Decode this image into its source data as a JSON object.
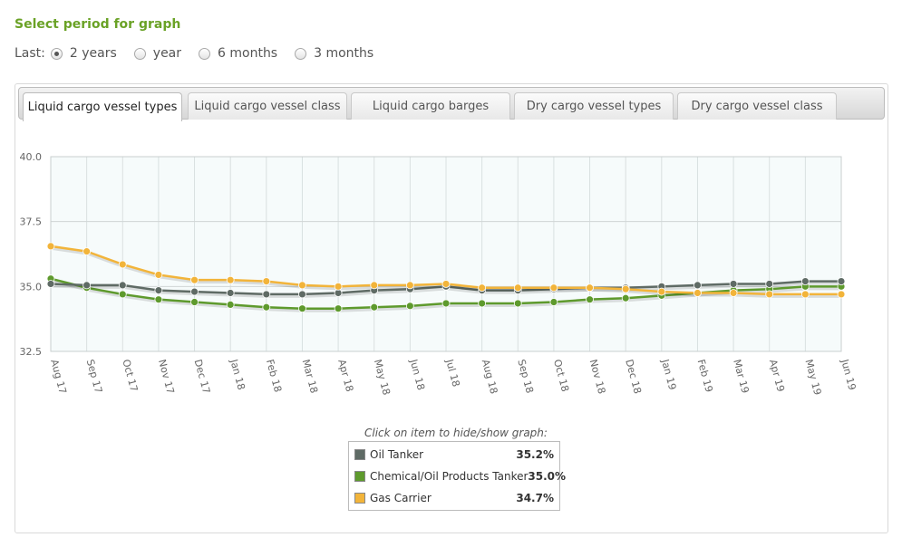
{
  "page": {
    "heading": "Select period for graph",
    "period_label": "Last:",
    "period_options": [
      {
        "label": "2 years",
        "checked": true
      },
      {
        "label": "year",
        "checked": false
      },
      {
        "label": "6 months",
        "checked": false
      },
      {
        "label": "3 months",
        "checked": false
      }
    ]
  },
  "tabs": [
    {
      "label": "Liquid cargo vessel types",
      "active": true
    },
    {
      "label": "Liquid cargo vessel class",
      "active": false
    },
    {
      "label": "Liquid cargo barges",
      "active": false
    },
    {
      "label": "Dry cargo vessel types",
      "active": false
    },
    {
      "label": "Dry cargo vessel class",
      "active": false
    }
  ],
  "legend": {
    "caption": "Click on item to hide/show graph:",
    "items": [
      {
        "name": "Oil Tanker",
        "value": "35.2%",
        "color": "#5f6b65"
      },
      {
        "name": "Chemical/Oil Products Tanker",
        "value": "35.0%",
        "color": "#5e9a2d"
      },
      {
        "name": "Gas Carrier",
        "value": "34.7%",
        "color": "#f2b43a"
      }
    ]
  },
  "chart_data": {
    "type": "line",
    "categories": [
      "Aug 17",
      "Sep 17",
      "Oct 17",
      "Nov 17",
      "Dec 17",
      "Jan 18",
      "Feb 18",
      "Mar 18",
      "Apr 18",
      "May 18",
      "Jun 18",
      "Jul 18",
      "Aug 18",
      "Sep 18",
      "Oct 18",
      "Nov 18",
      "Dec 18",
      "Jan 19",
      "Feb 19",
      "Mar 19",
      "Apr 19",
      "May 19",
      "Jun 19"
    ],
    "ylim": [
      32.5,
      40.0
    ],
    "yticks": [
      "32.5",
      "35.0",
      "37.5",
      "40.0"
    ],
    "grid": true,
    "series": [
      {
        "name": "Oil Tanker",
        "color": "#5f6b65",
        "values": [
          35.1,
          35.05,
          35.05,
          34.85,
          34.8,
          34.75,
          34.7,
          34.7,
          34.75,
          34.85,
          34.9,
          35.0,
          34.85,
          34.85,
          34.9,
          34.95,
          34.95,
          35.0,
          35.05,
          35.1,
          35.1,
          35.2,
          35.2
        ]
      },
      {
        "name": "Chemical/Oil Products Tanker",
        "color": "#5e9a2d",
        "values": [
          35.3,
          34.95,
          34.7,
          34.5,
          34.4,
          34.3,
          34.2,
          34.15,
          34.15,
          34.2,
          34.25,
          34.35,
          34.35,
          34.35,
          34.4,
          34.5,
          34.55,
          34.65,
          34.75,
          34.85,
          34.9,
          35.0,
          35.0
        ]
      },
      {
        "name": "Gas Carrier",
        "color": "#f2b43a",
        "values": [
          36.55,
          36.35,
          35.85,
          35.45,
          35.25,
          35.25,
          35.2,
          35.05,
          35.0,
          35.05,
          35.05,
          35.1,
          34.95,
          34.95,
          34.95,
          34.95,
          34.9,
          34.8,
          34.75,
          34.75,
          34.7,
          34.7,
          34.7
        ]
      }
    ]
  }
}
